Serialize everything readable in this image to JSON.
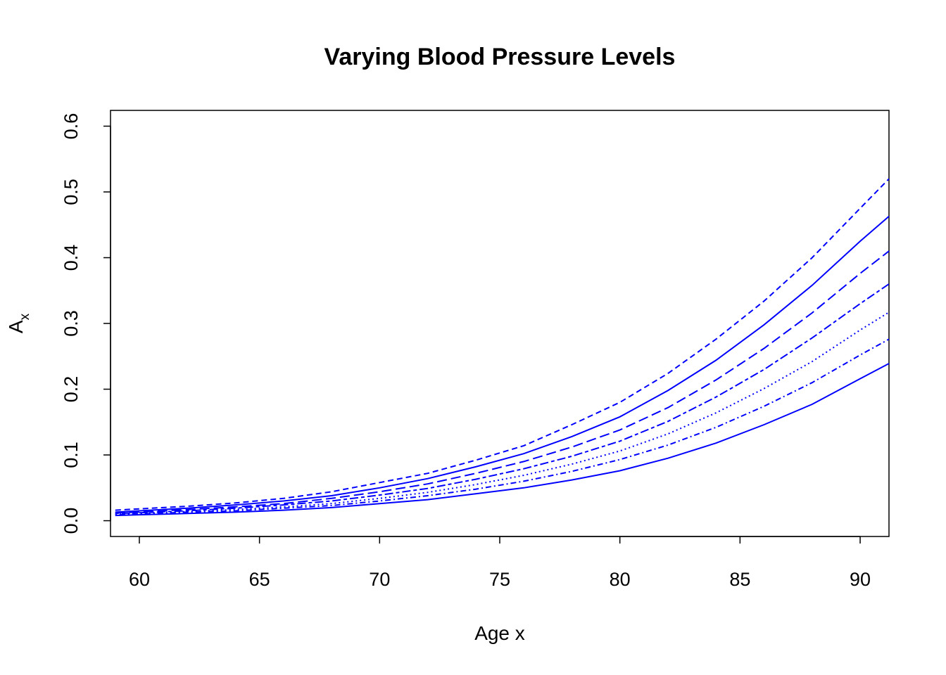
{
  "chart_data": {
    "type": "line",
    "title": "Varying Blood Pressure Levels",
    "xlabel": "Age x",
    "ylabel": {
      "main": "A",
      "subscript": "x"
    },
    "xlim": [
      58.8,
      91.2
    ],
    "ylim": [
      -0.024,
      0.624
    ],
    "xticks": [
      60,
      65,
      70,
      75,
      80,
      85,
      90
    ],
    "yticks": [
      0.0,
      0.1,
      0.2,
      0.3,
      0.4,
      0.5,
      0.6
    ],
    "xtick_labels": [
      "60",
      "65",
      "70",
      "75",
      "80",
      "85",
      "90"
    ],
    "ytick_labels": [
      "0.0",
      "0.1",
      "0.2",
      "0.3",
      "0.4",
      "0.5",
      "0.6"
    ],
    "grid": false,
    "color": "#0000ff",
    "x": [
      59,
      60,
      62,
      64,
      66,
      68,
      70,
      72,
      74,
      76,
      78,
      80,
      82,
      84,
      86,
      88,
      90,
      91.2
    ],
    "series": [
      {
        "linestyle": "dashed",
        "values": [
          0.016,
          0.018,
          0.022,
          0.027,
          0.034,
          0.044,
          0.058,
          0.072,
          0.092,
          0.114,
          0.146,
          0.18,
          0.224,
          0.276,
          0.334,
          0.4,
          0.475,
          0.52
        ]
      },
      {
        "linestyle": "solid",
        "values": [
          0.013,
          0.015,
          0.019,
          0.024,
          0.03,
          0.038,
          0.05,
          0.064,
          0.082,
          0.102,
          0.128,
          0.158,
          0.198,
          0.244,
          0.298,
          0.358,
          0.425,
          0.463
        ]
      },
      {
        "linestyle": "longdash",
        "values": [
          0.012,
          0.013,
          0.017,
          0.021,
          0.026,
          0.034,
          0.044,
          0.056,
          0.072,
          0.09,
          0.112,
          0.138,
          0.172,
          0.214,
          0.262,
          0.316,
          0.376,
          0.41
        ]
      },
      {
        "linestyle": "twodash",
        "values": [
          0.011,
          0.012,
          0.015,
          0.019,
          0.024,
          0.03,
          0.039,
          0.049,
          0.063,
          0.079,
          0.098,
          0.121,
          0.151,
          0.188,
          0.23,
          0.278,
          0.33,
          0.36
        ]
      },
      {
        "linestyle": "dotted",
        "values": [
          0.01,
          0.011,
          0.014,
          0.017,
          0.021,
          0.026,
          0.034,
          0.043,
          0.055,
          0.069,
          0.086,
          0.106,
          0.132,
          0.164,
          0.201,
          0.242,
          0.29,
          0.317
        ]
      },
      {
        "linestyle": "dotdash",
        "values": [
          0.009,
          0.01,
          0.013,
          0.015,
          0.019,
          0.023,
          0.03,
          0.038,
          0.048,
          0.06,
          0.075,
          0.093,
          0.115,
          0.142,
          0.174,
          0.21,
          0.252,
          0.276
        ]
      },
      {
        "linestyle": "solid",
        "values": [
          0.008,
          0.009,
          0.011,
          0.013,
          0.016,
          0.02,
          0.026,
          0.032,
          0.041,
          0.05,
          0.062,
          0.076,
          0.095,
          0.118,
          0.146,
          0.177,
          0.216,
          0.239
        ]
      }
    ]
  }
}
